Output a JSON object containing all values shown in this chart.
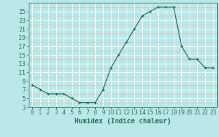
{
  "x": [
    0,
    1,
    2,
    3,
    4,
    5,
    6,
    7,
    8,
    9,
    10,
    11,
    12,
    13,
    14,
    15,
    16,
    17,
    18,
    19,
    20,
    21,
    22,
    23
  ],
  "y": [
    8,
    7,
    6,
    6,
    6,
    5,
    4,
    4,
    4,
    7,
    12,
    15,
    18,
    21,
    24,
    25,
    26,
    26,
    26,
    17,
    14,
    14,
    12,
    12
  ],
  "line_color": "#2d6b5e",
  "marker": "+",
  "bg_color": "#b8e8e8",
  "grid_color_major": "#ffffff",
  "grid_color_minor": "#ffaaaa",
  "xlabel": "Humidex (Indice chaleur)",
  "xlabel_fontsize": 7,
  "tick_fontsize": 6,
  "ylim": [
    3,
    27
  ],
  "yticks": [
    3,
    5,
    7,
    9,
    11,
    13,
    15,
    17,
    19,
    21,
    23,
    25
  ],
  "xlim": [
    -0.5,
    23.5
  ],
  "xticks": [
    0,
    1,
    2,
    3,
    4,
    5,
    6,
    7,
    8,
    9,
    10,
    11,
    12,
    13,
    14,
    15,
    16,
    17,
    18,
    19,
    20,
    21,
    22,
    23
  ]
}
